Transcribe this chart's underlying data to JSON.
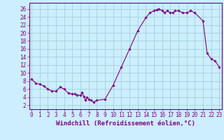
{
  "x_vals": [
    0,
    0.5,
    1,
    1.5,
    2,
    2.5,
    3,
    3.5,
    4,
    4.5,
    5,
    5.3,
    5.6,
    6,
    6.2,
    6.4,
    6.6,
    6.8,
    7,
    7.3,
    7.6,
    8,
    9,
    10,
    11,
    12,
    13,
    14,
    14.5,
    15,
    15.3,
    15.6,
    16,
    16.3,
    16.6,
    17,
    17.3,
    17.6,
    18,
    18.5,
    19,
    19.5,
    20,
    21,
    21.5,
    22,
    22.5,
    23
  ],
  "values": [
    8.5,
    7.5,
    7.2,
    6.8,
    6.0,
    5.5,
    5.5,
    6.5,
    6.0,
    5.0,
    4.8,
    4.8,
    4.5,
    4.5,
    5.2,
    4.2,
    3.2,
    4.0,
    3.5,
    3.2,
    2.8,
    3.2,
    3.5,
    7.0,
    11.5,
    16.0,
    20.5,
    23.8,
    25.0,
    25.5,
    25.8,
    26.0,
    25.5,
    25.0,
    25.5,
    25.0,
    25.0,
    25.5,
    25.5,
    25.0,
    25.0,
    25.5,
    25.0,
    23.0,
    15.0,
    13.5,
    13.0,
    11.5
  ],
  "line_color": "#800080",
  "marker_color": "#800080",
  "bg_color": "#cceeff",
  "grid_color": "#99cccc",
  "axis_color": "#800080",
  "tick_color": "#800080",
  "xlabel": "Windchill (Refroidissement éolien,°C)",
  "xlim": [
    -0.3,
    23.3
  ],
  "ylim": [
    1,
    27.5
  ],
  "yticks": [
    2,
    4,
    6,
    8,
    10,
    12,
    14,
    16,
    18,
    20,
    22,
    24,
    26
  ],
  "xticks": [
    0,
    1,
    2,
    3,
    4,
    5,
    6,
    7,
    8,
    9,
    10,
    11,
    12,
    13,
    14,
    15,
    16,
    17,
    18,
    19,
    20,
    21,
    22,
    23
  ],
  "font_size": 5.5,
  "xlabel_fontsize": 6.5
}
